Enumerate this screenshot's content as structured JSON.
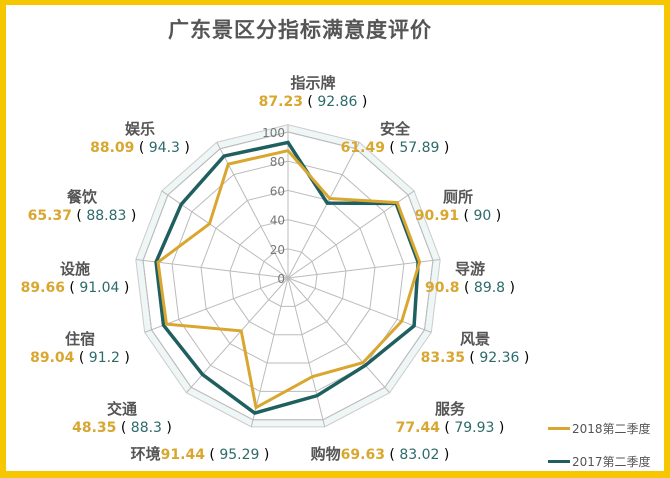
{
  "chart_data": {
    "type": "radar",
    "title": "广东景区分指标满意度评价",
    "categories": [
      "指示牌",
      "安全",
      "厕所",
      "导游",
      "风景",
      "服务",
      "购物",
      "环境",
      "交通",
      "住宿",
      "设施",
      "餐饮",
      "娱乐"
    ],
    "series": [
      {
        "name": "2018第二季度",
        "color": "#d9a730",
        "values": [
          87.23,
          61.49,
          90.91,
          90.8,
          83.35,
          77.44,
          69.63,
          91.44,
          48.35,
          89.04,
          89.66,
          65.37,
          88.09
        ]
      },
      {
        "name": "2017第二季度",
        "color": "#1f5f5f",
        "values": [
          92.86,
          57.89,
          90,
          89.8,
          92.36,
          79.93,
          83.02,
          95.29,
          88.3,
          91.2,
          91.04,
          88.83,
          94.3
        ]
      }
    ],
    "value_labels_2018": [
      "87.23",
      "61.49",
      "90.91",
      "90.8",
      "83.35",
      "77.44",
      "69.63",
      "91.44",
      "48.35",
      "89.04",
      "89.66",
      "65.37",
      "88.09"
    ],
    "value_labels_2017": [
      "92.86",
      "57.89",
      "90",
      "89.8",
      "92.36",
      "79.93",
      "83.02",
      "95.29",
      "88.3",
      "91.2",
      "91.04",
      "88.83",
      "94.3"
    ],
    "rlim": [
      0,
      100
    ],
    "rticks": [
      "0",
      "20",
      "40",
      "60",
      "80",
      "100"
    ],
    "grid": true,
    "legend": "bottom-right"
  }
}
